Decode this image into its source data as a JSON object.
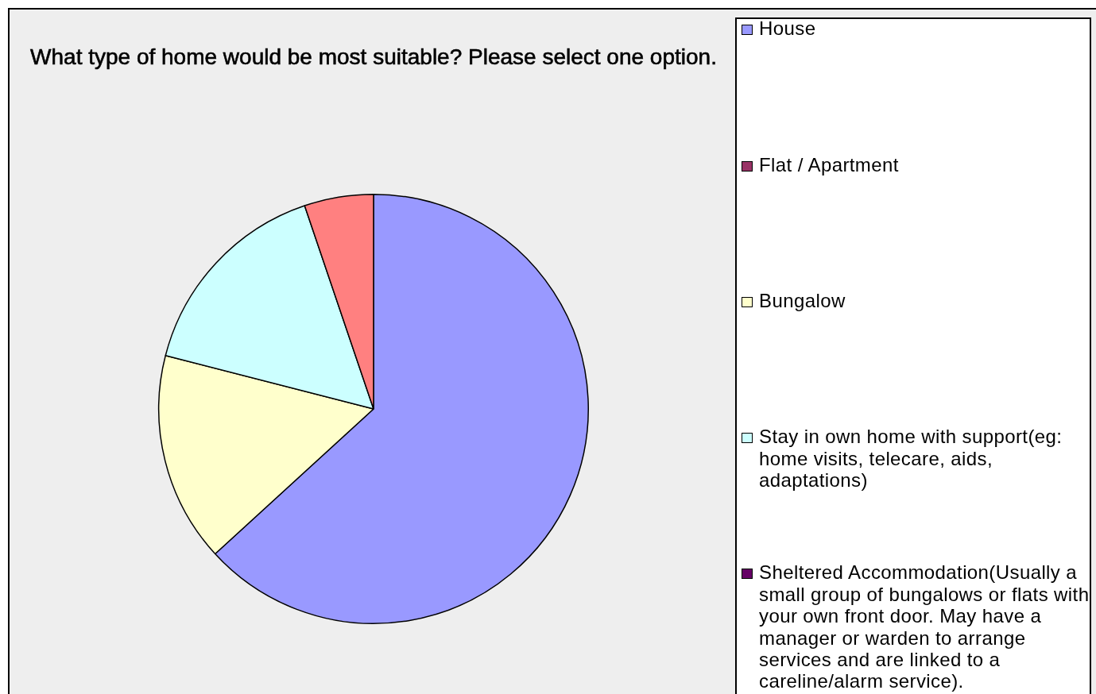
{
  "chart_data": {
    "type": "pie",
    "title": "What type of home would be most suitable? Please select one option.",
    "categories": [
      "House",
      "Flat / Apartment",
      "Bungalow",
      "Stay in own home with support(eg: home visits, telecare, aids, adaptations)",
      "Sheltered Accommodation(Usually a small group of bungalows or flats with your own front door. May have a manager or warden to arrange services and are linked to a careline/alarm service).",
      null
    ],
    "values": [
      63.2,
      0,
      15.8,
      15.8,
      0,
      5.2
    ],
    "colors": [
      "#9999ff",
      "#993366",
      "#ffffcc",
      "#ccffff",
      "#660066",
      "#ff8080"
    ],
    "legend": "right"
  }
}
